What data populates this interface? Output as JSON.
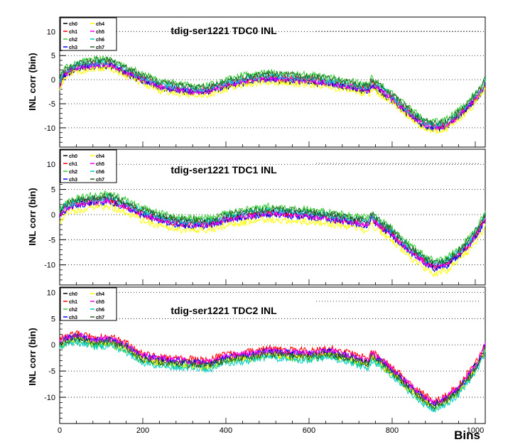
{
  "chart_data": [
    {
      "type": "line",
      "title": "tdig-ser1221 TDC0 INL",
      "xlabel": "",
      "ylabel": "INL corr (bin)",
      "xlim": [
        0,
        1024
      ],
      "ylim": [
        -14,
        13
      ],
      "xticks": [],
      "yticks": [
        "10",
        "5",
        "0",
        "-5",
        "-10"
      ],
      "grid": "horizontal dotted",
      "legend": "top-left",
      "series": [
        {
          "name": "ch0",
          "color": "#000000",
          "offset": -0.3
        },
        {
          "name": "ch1",
          "color": "#ff0000",
          "offset": 0.2
        },
        {
          "name": "ch2",
          "color": "#33cc33",
          "offset": 1.2
        },
        {
          "name": "ch3",
          "color": "#0000ff",
          "offset": -0.1
        },
        {
          "name": "ch4",
          "color": "#ffff00",
          "offset": -0.8
        },
        {
          "name": "ch5",
          "color": "#ff00ff",
          "offset": 0.0
        },
        {
          "name": "ch6",
          "color": "#00cccc",
          "offset": 0.5
        },
        {
          "name": "ch7",
          "color": "#226622",
          "offset": 0.9
        }
      ],
      "shape": {
        "x": [
          0,
          10,
          40,
          80,
          120,
          160,
          200,
          240,
          280,
          320,
          360,
          400,
          450,
          500,
          550,
          600,
          650,
          700,
          745,
          750,
          760,
          800,
          840,
          870,
          900,
          930,
          960,
          990,
          1010,
          1024
        ],
        "y": [
          -1,
          1,
          2.5,
          3,
          3.2,
          1.5,
          0,
          -1.5,
          -2,
          -2.5,
          -2.3,
          -1.2,
          -0.2,
          0.3,
          0,
          -0.2,
          -0.8,
          -1.5,
          -2.2,
          -1,
          -1.5,
          -4,
          -7,
          -9,
          -10,
          -9.5,
          -7.5,
          -5,
          -3,
          -1
        ]
      }
    },
    {
      "type": "line",
      "title": "tdig-ser1221 TDC1 INL",
      "xlabel": "",
      "ylabel": "INL corr (bin)",
      "xlim": [
        0,
        1024
      ],
      "ylim": [
        -14,
        13
      ],
      "xticks": [],
      "yticks": [
        "10",
        "5",
        "0",
        "-5",
        "-10"
      ],
      "grid": "horizontal dotted",
      "legend": "top-left",
      "series": [
        {
          "name": "ch0",
          "color": "#000000",
          "offset": 0.3
        },
        {
          "name": "ch1",
          "color": "#ff0000",
          "offset": 0.0
        },
        {
          "name": "ch2",
          "color": "#33cc33",
          "offset": 1.3
        },
        {
          "name": "ch3",
          "color": "#0000ff",
          "offset": -0.2
        },
        {
          "name": "ch4",
          "color": "#ffff00",
          "offset": -1.2
        },
        {
          "name": "ch5",
          "color": "#ff00ff",
          "offset": 0.1
        },
        {
          "name": "ch6",
          "color": "#00cccc",
          "offset": 0.6
        },
        {
          "name": "ch7",
          "color": "#226622",
          "offset": 0.9
        }
      ],
      "shape": {
        "x": [
          0,
          10,
          40,
          80,
          120,
          160,
          200,
          240,
          280,
          320,
          360,
          400,
          450,
          500,
          550,
          600,
          650,
          700,
          745,
          750,
          760,
          800,
          840,
          870,
          900,
          930,
          960,
          990,
          1010,
          1024
        ],
        "y": [
          -0.5,
          1,
          2,
          2.5,
          2.8,
          1.5,
          0,
          -1,
          -1.8,
          -2,
          -2,
          -1,
          -0.3,
          0.3,
          0,
          -0.3,
          -0.8,
          -1.5,
          -2,
          -0.5,
          -1.5,
          -4,
          -7,
          -9,
          -10.5,
          -10,
          -8,
          -5.5,
          -3,
          -1
        ]
      }
    },
    {
      "type": "line",
      "title": "tdig-ser1221 TDC2 INL",
      "xlabel": "Bins",
      "ylabel": "INL corr (bin)",
      "xlim": [
        0,
        1024
      ],
      "ylim": [
        -15,
        11
      ],
      "xticks": [
        "0",
        "200",
        "400",
        "600",
        "800",
        "1000"
      ],
      "yticks": [
        "10",
        "5",
        "0",
        "-5",
        "-10"
      ],
      "grid": "horizontal dotted",
      "legend": "top-left",
      "series": [
        {
          "name": "ch0",
          "color": "#000000",
          "offset": 0.0
        },
        {
          "name": "ch1",
          "color": "#ff0000",
          "offset": 0.8
        },
        {
          "name": "ch2",
          "color": "#33cc33",
          "offset": -0.6
        },
        {
          "name": "ch3",
          "color": "#0000ff",
          "offset": 0.2
        },
        {
          "name": "ch4",
          "color": "#ffff00",
          "offset": -0.4
        },
        {
          "name": "ch5",
          "color": "#ff00ff",
          "offset": 0.4
        },
        {
          "name": "ch6",
          "color": "#00cccc",
          "offset": -0.9
        },
        {
          "name": "ch7",
          "color": "#226622",
          "offset": -0.2
        }
      ],
      "shape": {
        "x": [
          0,
          10,
          40,
          80,
          120,
          160,
          200,
          240,
          280,
          320,
          360,
          400,
          450,
          500,
          550,
          600,
          650,
          700,
          745,
          750,
          760,
          800,
          840,
          870,
          900,
          930,
          960,
          990,
          1010,
          1024
        ],
        "y": [
          0,
          0.8,
          1.5,
          0.5,
          0.8,
          -0.5,
          -2.5,
          -3,
          -3.3,
          -3.5,
          -3.8,
          -2.5,
          -2.2,
          -1.5,
          -1.8,
          -2,
          -1.5,
          -2.5,
          -3.5,
          -2,
          -2.5,
          -5,
          -8,
          -10,
          -11.5,
          -10.5,
          -8.5,
          -5.5,
          -3,
          -0.5
        ]
      }
    }
  ]
}
